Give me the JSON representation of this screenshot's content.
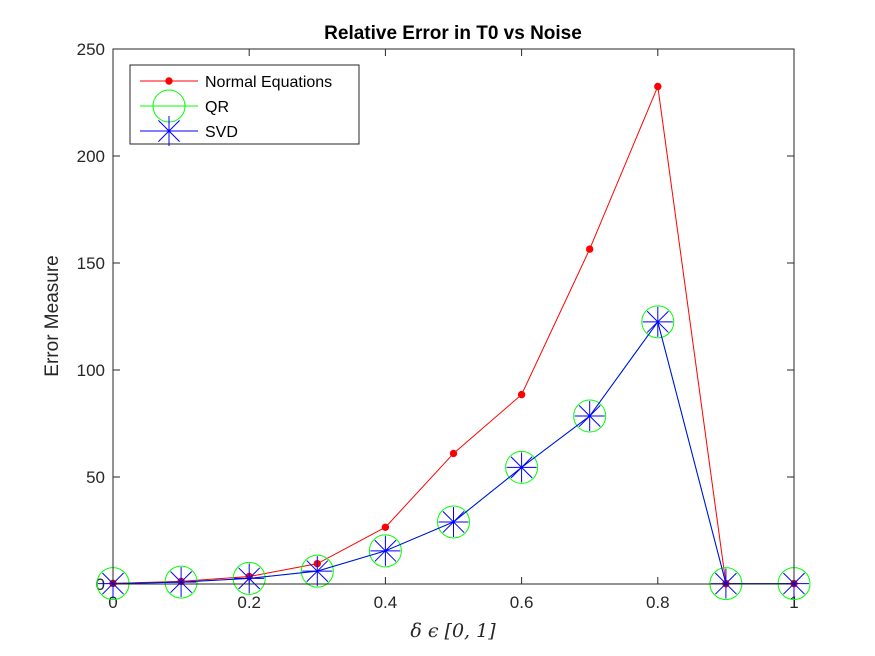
{
  "chart_data": {
    "type": "line",
    "title": "Relative Error in T0 vs Noise",
    "xlabel": "δ ϵ [0, 1]",
    "ylabel": "Error Measure",
    "xlim": [
      0,
      1
    ],
    "ylim": [
      0,
      250
    ],
    "xticks": [
      "0",
      "0.2",
      "0.4",
      "0.6",
      "0.8",
      "1"
    ],
    "yticks": [
      "0",
      "50",
      "100",
      "150",
      "200",
      "250"
    ],
    "grid": false,
    "legend_position": "top-left",
    "x": [
      0,
      0.1,
      0.2,
      0.3,
      0.4,
      0.5,
      0.6,
      0.7,
      0.8,
      0.9,
      1.0
    ],
    "series": [
      {
        "name": "Normal Equations",
        "color": "#ff0000",
        "marker": "dot",
        "values": [
          0.3,
          1.2,
          3.5,
          9.5,
          26.5,
          61,
          88.5,
          156.5,
          232.5,
          0.2,
          0.2
        ]
      },
      {
        "name": "QR",
        "color": "#00ff00",
        "marker": "circle",
        "values": [
          0.2,
          0.9,
          2.6,
          6.0,
          15.5,
          29,
          54.5,
          78.5,
          122.5,
          0.2,
          0.2
        ]
      },
      {
        "name": "SVD",
        "color": "#0000ff",
        "marker": "asterisk",
        "values": [
          0.2,
          0.9,
          2.6,
          6.0,
          15.5,
          29,
          54.5,
          78.5,
          122.5,
          0.2,
          0.2
        ]
      }
    ]
  }
}
